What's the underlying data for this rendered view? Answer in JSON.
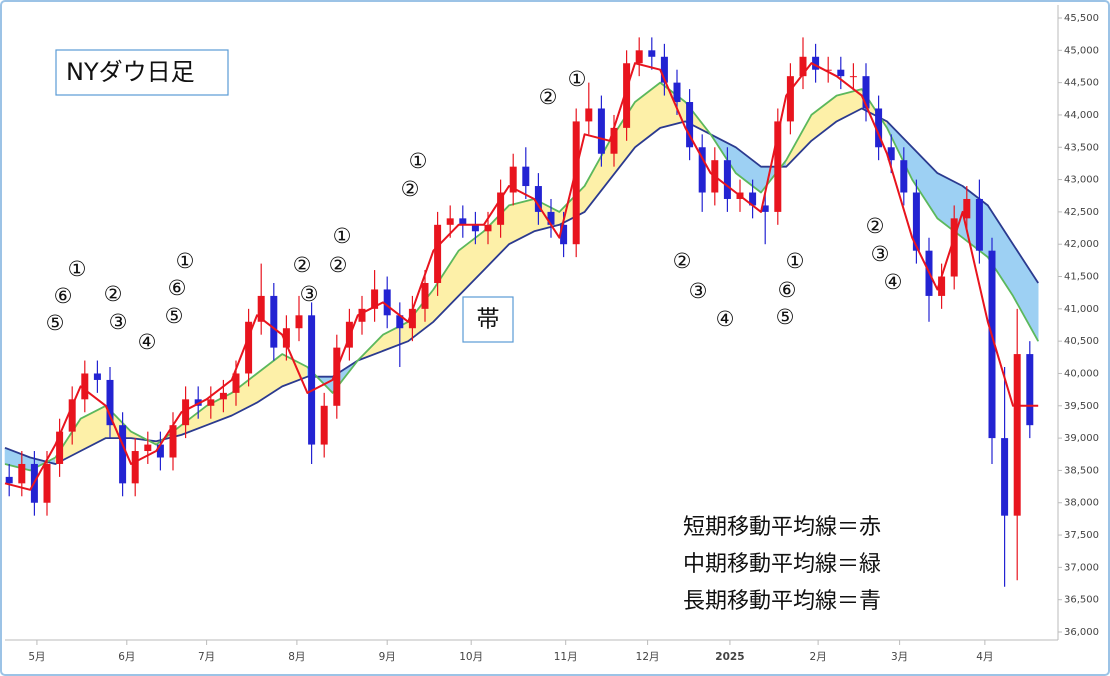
{
  "chart_data": {
    "type": "candlestick",
    "title": "NYダウ日足",
    "band_label": "帯",
    "notes": [
      "短期移動平均線＝赤",
      "中期移動平均線＝緑",
      "長期移動平均線＝青"
    ],
    "annotations": [
      "①",
      "⑥",
      "⑤",
      "②",
      "③",
      "④",
      "①",
      "⑥",
      "⑤",
      "②",
      "②",
      "③",
      "①",
      "①",
      "②",
      "②",
      "①",
      "②",
      "③",
      "④",
      "①",
      "⑥",
      "⑤",
      "②",
      "③",
      "④"
    ],
    "xlim": [
      0,
      250
    ],
    "xticks": [
      {
        "value": 7.6,
        "label": "5月"
      },
      {
        "value": 29,
        "label": "6月"
      },
      {
        "value": 48,
        "label": "7月"
      },
      {
        "value": 69.5,
        "label": "8月"
      },
      {
        "value": 91,
        "label": "9月"
      },
      {
        "value": 111,
        "label": "10月"
      },
      {
        "value": 133.5,
        "label": "11月"
      },
      {
        "value": 153,
        "label": "12月"
      },
      {
        "value": 172.6,
        "label": "2025"
      },
      {
        "value": 193.6,
        "label": "2月"
      },
      {
        "value": 213,
        "label": "3月"
      },
      {
        "value": 233.3,
        "label": "4月"
      }
    ],
    "ylim": [
      36000,
      45500
    ],
    "yticks": [
      {
        "value": 36000,
        "label": "36,000"
      },
      {
        "value": 36500,
        "label": "36,500"
      },
      {
        "value": 37000,
        "label": "37,000"
      },
      {
        "value": 37500,
        "label": "37,500"
      },
      {
        "value": 38000,
        "label": "38,000"
      },
      {
        "value": 38500,
        "label": "38,500"
      },
      {
        "value": 39000,
        "label": "39,000"
      },
      {
        "value": 39500,
        "label": "39,500"
      },
      {
        "value": 40000,
        "label": "40,000"
      },
      {
        "value": 40500,
        "label": "40,500"
      },
      {
        "value": 41000,
        "label": "41,000"
      },
      {
        "value": 41500,
        "label": "41,500"
      },
      {
        "value": 42000,
        "label": "42,000"
      },
      {
        "value": 42500,
        "label": "42,500"
      },
      {
        "value": 43000,
        "label": "43,000"
      },
      {
        "value": 43500,
        "label": "43,500"
      },
      {
        "value": 44000,
        "label": "44,000"
      },
      {
        "value": 44500,
        "label": "44,500"
      },
      {
        "value": 45000,
        "label": "45,000"
      },
      {
        "value": 45500,
        "label": "45,500"
      }
    ],
    "up_color": "#e8141e",
    "down_color": "#2323d2",
    "band_colors": {
      "up": "#fdf0a8",
      "down": "#9dd0f3"
    },
    "candles": {
      "x": [
        1,
        4,
        7,
        10,
        13,
        16,
        19,
        22,
        25,
        28,
        31,
        34,
        37,
        40,
        43,
        46,
        49,
        52,
        55,
        58,
        61,
        64,
        67,
        70,
        73,
        76,
        79,
        82,
        85,
        88,
        91,
        94,
        97,
        100,
        103,
        106,
        109,
        112,
        115,
        118,
        121,
        124,
        127,
        130,
        133,
        136,
        139,
        142,
        145,
        148,
        151,
        154,
        157,
        160,
        163,
        166,
        169,
        172,
        175,
        178,
        181,
        184,
        187,
        190,
        193,
        196,
        199,
        202,
        205,
        208,
        211,
        214,
        217,
        220,
        223,
        226,
        229,
        232,
        235,
        238,
        241,
        244
      ],
      "open": [
        38400,
        38300,
        38600,
        38000,
        38600,
        39100,
        39600,
        40000,
        39900,
        39200,
        38300,
        38800,
        38900,
        38700,
        39200,
        39600,
        39500,
        39600,
        39700,
        40000,
        40800,
        41200,
        40400,
        40700,
        40900,
        38900,
        39500,
        40400,
        40800,
        41000,
        41300,
        40900,
        40700,
        41000,
        41400,
        42300,
        42400,
        42300,
        42200,
        42300,
        42800,
        43200,
        42900,
        42500,
        42300,
        42000,
        43900,
        44100,
        43400,
        43800,
        44800,
        45000,
        44900,
        44500,
        44200,
        43500,
        42800,
        43300,
        42700,
        42800,
        42600,
        42500,
        43900,
        44600,
        44900,
        44700,
        44700,
        44600,
        44600,
        44100,
        43500,
        43300,
        42800,
        41900,
        41200,
        41500,
        42400,
        42700,
        41900,
        39000,
        37800,
        40300
      ],
      "high": [
        38600,
        38800,
        38800,
        38800,
        39300,
        39800,
        40200,
        40200,
        40100,
        39400,
        39000,
        39100,
        39100,
        39400,
        39800,
        39800,
        39800,
        39900,
        40200,
        41000,
        41700,
        41400,
        40900,
        41200,
        41100,
        39700,
        40600,
        41000,
        41200,
        41600,
        41500,
        41100,
        41200,
        41600,
        42500,
        42600,
        42600,
        42500,
        42500,
        43000,
        43400,
        43500,
        43100,
        42700,
        42500,
        44100,
        44500,
        44300,
        44000,
        45000,
        45200,
        45200,
        45100,
        44700,
        44400,
        43700,
        43500,
        43500,
        43000,
        43000,
        42800,
        44100,
        44800,
        45200,
        45100,
        44900,
        44900,
        44800,
        44800,
        44300,
        43700,
        43500,
        43000,
        42100,
        41700,
        42600,
        42900,
        43000,
        42100,
        40100,
        41000,
        40500
      ],
      "low": [
        38100,
        38100,
        37800,
        37800,
        38400,
        38900,
        39400,
        39700,
        39000,
        38100,
        38100,
        38600,
        38500,
        38500,
        39000,
        39300,
        39300,
        39400,
        39500,
        39800,
        40600,
        40200,
        40200,
        40500,
        38600,
        38700,
        39300,
        40200,
        40600,
        40800,
        40700,
        40100,
        40500,
        40800,
        41200,
        42100,
        42100,
        42000,
        42000,
        42100,
        42600,
        42700,
        42300,
        42100,
        41800,
        41800,
        43700,
        43200,
        43200,
        43600,
        44600,
        44700,
        44300,
        44000,
        43300,
        42500,
        42600,
        42500,
        42500,
        42400,
        42000,
        42300,
        43700,
        44400,
        44500,
        44500,
        44400,
        44400,
        43900,
        43300,
        43100,
        42600,
        41700,
        40800,
        41000,
        41300,
        42200,
        41700,
        38600,
        36700,
        36800,
        39000
      ],
      "close": [
        38300,
        38600,
        38000,
        38600,
        39100,
        39600,
        40000,
        39900,
        39200,
        38300,
        38800,
        38900,
        38700,
        39200,
        39600,
        39500,
        39600,
        39700,
        40000,
        40800,
        41200,
        40400,
        40700,
        40900,
        38900,
        39500,
        40400,
        40800,
        41000,
        41300,
        40900,
        40700,
        41000,
        41400,
        42300,
        42400,
        42300,
        42200,
        42300,
        42800,
        43200,
        42900,
        42500,
        42300,
        42000,
        43900,
        44100,
        43400,
        43800,
        44800,
        45000,
        44900,
        44500,
        44200,
        43500,
        42800,
        43300,
        42700,
        42800,
        42600,
        42500,
        43900,
        44600,
        44900,
        44700,
        44700,
        44600,
        44600,
        44100,
        43500,
        43300,
        42800,
        41900,
        41200,
        41500,
        42400,
        42700,
        41900,
        39000,
        37800,
        40300,
        39200
      ]
    },
    "ma_x": [
      0,
      6,
      12,
      18,
      24,
      30,
      36,
      42,
      48,
      54,
      60,
      66,
      72,
      78,
      84,
      90,
      96,
      102,
      108,
      114,
      120,
      126,
      132,
      138,
      144,
      150,
      156,
      162,
      168,
      174,
      180,
      186,
      192,
      198,
      204,
      210,
      216,
      222,
      228,
      234,
      240,
      246
    ],
    "series": [
      {
        "color": "#2b3a8f",
        "values": [
          38850,
          38700,
          38600,
          38800,
          39000,
          39000,
          38950,
          39050,
          39200,
          39350,
          39550,
          39800,
          39950,
          39950,
          40200,
          40350,
          40500,
          40800,
          41200,
          41600,
          42000,
          42200,
          42300,
          42500,
          43000,
          43500,
          43800,
          43900,
          43700,
          43500,
          43200,
          43200,
          43600,
          43900,
          44100,
          43900,
          43500,
          43100,
          42900,
          42600,
          42000,
          41400
        ]
      },
      {
        "color": "#5cb85c",
        "values": [
          38600,
          38500,
          38700,
          39300,
          39500,
          39100,
          38900,
          39200,
          39500,
          39700,
          40000,
          40300,
          40100,
          39700,
          40200,
          40600,
          40800,
          41300,
          41900,
          42200,
          42600,
          42700,
          42500,
          42900,
          43600,
          44200,
          44500,
          44200,
          43700,
          43100,
          42800,
          43300,
          44000,
          44300,
          44400,
          43800,
          43000,
          42400,
          42100,
          41800,
          41200,
          40500
        ]
      },
      {
        "color": "#e8141e",
        "values": [
          38300,
          38200,
          38900,
          39800,
          39500,
          38600,
          38800,
          39400,
          39600,
          39900,
          40900,
          40600,
          39700,
          39900,
          40900,
          41100,
          40800,
          41900,
          42300,
          42300,
          42900,
          42700,
          42100,
          43700,
          43600,
          44800,
          44700,
          43800,
          43100,
          42800,
          42500,
          44300,
          44800,
          44600,
          44300,
          43400,
          42100,
          41300,
          42500,
          40800,
          39500,
          39500
        ]
      }
    ]
  }
}
